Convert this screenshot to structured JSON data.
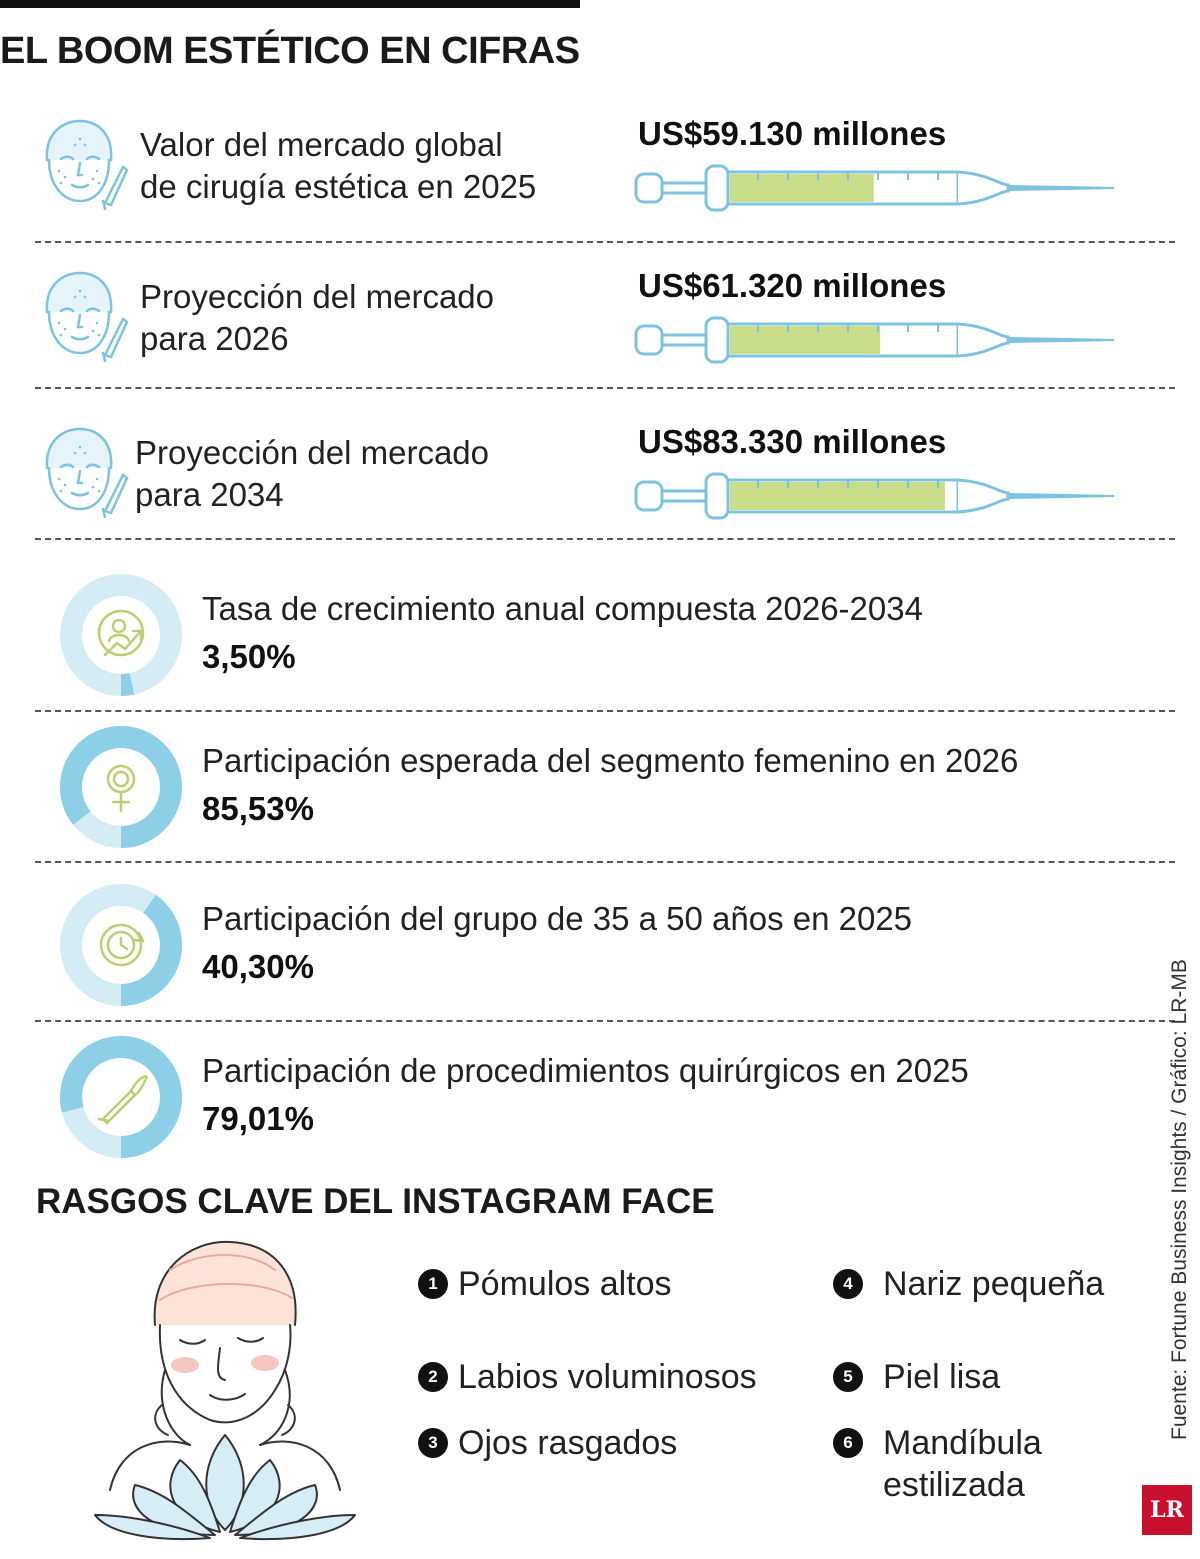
{
  "header": {
    "title": "EL BOOM ESTÉTICO EN CIFRAS"
  },
  "chart_data": [
    {
      "type": "bar",
      "categories": [
        "Valor del mercado global de cirugía estética en 2025",
        "Proyección del mercado para 2026",
        "Proyección del mercado para 2034"
      ],
      "values": [
        59130,
        61320,
        83330
      ],
      "value_labels": [
        "US$59.130 millones",
        "US$61.320 millones",
        "US$83.330 millones"
      ],
      "label_lines": [
        [
          "Valor del mercado global",
          "de cirugía estética en 2025"
        ],
        [
          "Proyección del mercado",
          "para 2026"
        ],
        [
          "Proyección del mercado",
          "para 2034"
        ]
      ],
      "unit": "millones de US$",
      "colors": {
        "fill": "#c9dc8a",
        "outline": "#7ec3dd"
      }
    },
    {
      "type": "pie",
      "categories": [
        "Tasa de crecimiento anual compuesta 2026-2034",
        "Participación esperada del segmento femenino en 2026",
        "Participación del grupo de 35 a 50 años en 2025",
        "Participación de procedimientos quirúrgicos en 2025"
      ],
      "values": [
        3.5,
        85.53,
        40.3,
        79.01
      ],
      "value_labels": [
        "3,50%",
        "85,53%",
        "40,30%",
        "79,01%"
      ],
      "icons": [
        "growth-person-icon",
        "female-symbol-icon",
        "clock-icon",
        "scalpel-icon"
      ],
      "colors": {
        "filled": "#8ccfe6",
        "remainder": "#d5ecf5",
        "icon": "#b9cf72"
      }
    }
  ],
  "features": {
    "title": "RASGOS CLAVE DEL INSTAGRAM FACE",
    "items": [
      {
        "num": "1",
        "label": "Pómulos altos"
      },
      {
        "num": "2",
        "label": "Labios voluminosos"
      },
      {
        "num": "3",
        "label": "Ojos rasgados"
      },
      {
        "num": "4",
        "label": "Nariz pequeña"
      },
      {
        "num": "5",
        "label": "Piel lisa"
      },
      {
        "num": "6",
        "label": "Mandíbula estilizada"
      }
    ]
  },
  "footer": {
    "source": "Fuente: Fortune Business Insights / Gráfico: LR-MB",
    "logo": "LR"
  }
}
